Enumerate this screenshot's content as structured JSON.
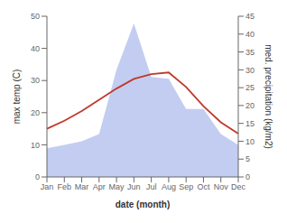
{
  "chart_data": {
    "type": "line",
    "categories": [
      "Jan",
      "Feb",
      "Mar",
      "Apr",
      "May",
      "Jun",
      "Jul",
      "Aug",
      "Sep",
      "Oct",
      "Nov",
      "Dec"
    ],
    "xlabel": "date (month)",
    "ylabel": "max temp (C)",
    "y2label": "med. precipitation (kg/m2)",
    "ylim": [
      0,
      50
    ],
    "yticks": [
      0,
      10,
      20,
      30,
      40,
      50
    ],
    "y2lim": [
      0,
      45
    ],
    "y2ticks": [
      0,
      5,
      10,
      15,
      20,
      25,
      30,
      35,
      40,
      45
    ],
    "series": [
      {
        "type": "area",
        "color": "#b8c4ee",
        "axis": "y2",
        "values": [
          8.0,
          9.0,
          10.0,
          12.0,
          30.0,
          43.0,
          28.0,
          27.5,
          19.0,
          19.0,
          12.0,
          9.0
        ]
      },
      {
        "type": "line",
        "color": "#c0392b",
        "values": [
          15.0,
          17.5,
          20.5,
          24.0,
          27.5,
          30.5,
          32.0,
          32.5,
          28.0,
          22.0,
          17.0,
          13.5
        ]
      }
    ]
  }
}
